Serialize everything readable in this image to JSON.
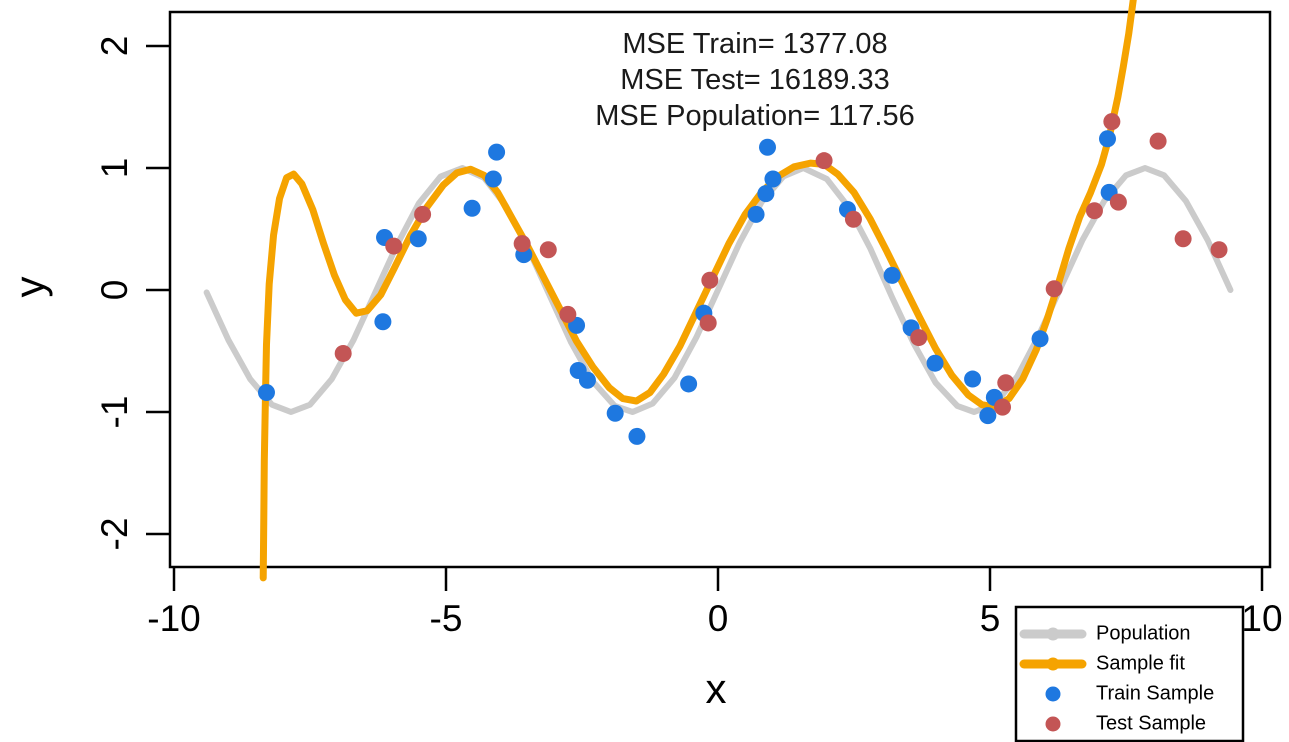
{
  "chart_data": {
    "type": "line+scatter",
    "title": "",
    "xlabel": "x",
    "ylabel": "y",
    "x_ticks": [
      -10,
      -5,
      0,
      5,
      10
    ],
    "y_ticks": [
      -2,
      -1,
      0,
      1,
      2
    ],
    "xlim": [
      -10.07,
      10.15
    ],
    "ylim": [
      -2.27,
      2.28
    ],
    "grid": false,
    "background": "#ffffff",
    "annotation_lines": [
      "MSE Train= 1377.08",
      "MSE Test= 16189.33",
      "MSE Population= 117.56"
    ],
    "legend": {
      "position": "bottom-right",
      "entries": [
        {
          "label": "Population",
          "marker": "thick-line-dot",
          "color": "#CBCBCB"
        },
        {
          "label": "Sample fit",
          "marker": "thick-line-dot",
          "color": "#F5A300"
        },
        {
          "label": "Train Sample",
          "marker": "dot",
          "color": "#1E78E0"
        },
        {
          "label": "Test Sample",
          "marker": "dot",
          "color": "#C35555"
        }
      ]
    },
    "series": [
      {
        "name": "Population",
        "type": "line",
        "color": "#CBCBCB",
        "stroke_width": 6,
        "points": [
          [
            -9.4,
            -0.02
          ],
          [
            -9.0,
            -0.41
          ],
          [
            -8.6,
            -0.73
          ],
          [
            -8.2,
            -0.94
          ],
          [
            -7.85,
            -1.0
          ],
          [
            -7.5,
            -0.94
          ],
          [
            -7.1,
            -0.73
          ],
          [
            -6.7,
            -0.41
          ],
          [
            -6.3,
            -0.02
          ],
          [
            -5.9,
            0.37
          ],
          [
            -5.5,
            0.71
          ],
          [
            -5.1,
            0.93
          ],
          [
            -4.7,
            1.0
          ],
          [
            -4.3,
            0.92
          ],
          [
            -3.9,
            0.69
          ],
          [
            -3.5,
            0.35
          ],
          [
            -3.1,
            -0.04
          ],
          [
            -2.7,
            -0.43
          ],
          [
            -2.3,
            -0.75
          ],
          [
            -1.9,
            -0.95
          ],
          [
            -1.57,
            -1.0
          ],
          [
            -1.2,
            -0.93
          ],
          [
            -0.8,
            -0.72
          ],
          [
            -0.4,
            -0.39
          ],
          [
            0.0,
            0.0
          ],
          [
            0.4,
            0.39
          ],
          [
            0.8,
            0.72
          ],
          [
            1.2,
            0.93
          ],
          [
            1.57,
            1.0
          ],
          [
            2.0,
            0.91
          ],
          [
            2.4,
            0.68
          ],
          [
            2.8,
            0.34
          ],
          [
            3.2,
            -0.06
          ],
          [
            3.6,
            -0.44
          ],
          [
            4.0,
            -0.76
          ],
          [
            4.4,
            -0.95
          ],
          [
            4.71,
            -1.0
          ],
          [
            5.1,
            -0.93
          ],
          [
            5.5,
            -0.71
          ],
          [
            5.9,
            -0.37
          ],
          [
            6.3,
            0.02
          ],
          [
            6.7,
            0.41
          ],
          [
            7.1,
            0.73
          ],
          [
            7.5,
            0.94
          ],
          [
            7.85,
            1.0
          ],
          [
            8.2,
            0.94
          ],
          [
            8.6,
            0.73
          ],
          [
            9.0,
            0.41
          ],
          [
            9.42,
            0.0
          ]
        ]
      },
      {
        "name": "Sample fit",
        "type": "line",
        "color": "#F5A300",
        "stroke_width": 7,
        "points": [
          [
            -8.36,
            -2.36
          ],
          [
            -8.35,
            -1.9
          ],
          [
            -8.34,
            -1.4
          ],
          [
            -8.32,
            -0.9
          ],
          [
            -8.3,
            -0.45
          ],
          [
            -8.25,
            0.05
          ],
          [
            -8.17,
            0.45
          ],
          [
            -8.06,
            0.75
          ],
          [
            -7.93,
            0.92
          ],
          [
            -7.8,
            0.95
          ],
          [
            -7.65,
            0.87
          ],
          [
            -7.45,
            0.66
          ],
          [
            -7.25,
            0.38
          ],
          [
            -7.05,
            0.12
          ],
          [
            -6.85,
            -0.08
          ],
          [
            -6.65,
            -0.19
          ],
          [
            -6.45,
            -0.17
          ],
          [
            -6.2,
            -0.04
          ],
          [
            -5.95,
            0.18
          ],
          [
            -5.65,
            0.45
          ],
          [
            -5.35,
            0.68
          ],
          [
            -5.05,
            0.86
          ],
          [
            -4.8,
            0.96
          ],
          [
            -4.55,
            0.99
          ],
          [
            -4.3,
            0.94
          ],
          [
            -4.05,
            0.8
          ],
          [
            -3.8,
            0.6
          ],
          [
            -3.5,
            0.36
          ],
          [
            -3.2,
            0.1
          ],
          [
            -2.9,
            -0.16
          ],
          [
            -2.6,
            -0.42
          ],
          [
            -2.3,
            -0.63
          ],
          [
            -2.0,
            -0.8
          ],
          [
            -1.75,
            -0.89
          ],
          [
            -1.5,
            -0.91
          ],
          [
            -1.25,
            -0.84
          ],
          [
            -1.0,
            -0.69
          ],
          [
            -0.7,
            -0.46
          ],
          [
            -0.4,
            -0.18
          ],
          [
            -0.1,
            0.1
          ],
          [
            0.2,
            0.38
          ],
          [
            0.5,
            0.62
          ],
          [
            0.8,
            0.8
          ],
          [
            1.1,
            0.93
          ],
          [
            1.4,
            1.01
          ],
          [
            1.7,
            1.04
          ],
          [
            1.95,
            1.03
          ],
          [
            2.2,
            0.95
          ],
          [
            2.5,
            0.8
          ],
          [
            2.8,
            0.58
          ],
          [
            3.1,
            0.32
          ],
          [
            3.4,
            0.05
          ],
          [
            3.7,
            -0.22
          ],
          [
            4.0,
            -0.48
          ],
          [
            4.3,
            -0.7
          ],
          [
            4.6,
            -0.86
          ],
          [
            4.85,
            -0.94
          ],
          [
            5.1,
            -0.96
          ],
          [
            5.35,
            -0.89
          ],
          [
            5.6,
            -0.73
          ],
          [
            5.85,
            -0.49
          ],
          [
            6.05,
            -0.24
          ],
          [
            6.25,
            0.04
          ],
          [
            6.45,
            0.34
          ],
          [
            6.65,
            0.6
          ],
          [
            6.85,
            0.8
          ],
          [
            7.05,
            1.03
          ],
          [
            7.2,
            1.27
          ],
          [
            7.35,
            1.58
          ],
          [
            7.45,
            1.83
          ],
          [
            7.55,
            2.1
          ],
          [
            7.64,
            2.4
          ]
        ]
      },
      {
        "name": "Train Sample",
        "type": "scatter",
        "color": "#1E78E0",
        "radius": 8.5,
        "points": [
          [
            -8.3,
            -0.84
          ],
          [
            -6.16,
            -0.26
          ],
          [
            -6.13,
            0.43
          ],
          [
            -5.51,
            0.42
          ],
          [
            -4.52,
            0.67
          ],
          [
            -4.13,
            0.91
          ],
          [
            -4.07,
            1.13
          ],
          [
            -3.57,
            0.29
          ],
          [
            -2.6,
            -0.29
          ],
          [
            -2.57,
            -0.66
          ],
          [
            -2.4,
            -0.74
          ],
          [
            -1.89,
            -1.01
          ],
          [
            -1.49,
            -1.2
          ],
          [
            -0.54,
            -0.77
          ],
          [
            -0.26,
            -0.19
          ],
          [
            0.7,
            0.62
          ],
          [
            0.88,
            0.79
          ],
          [
            0.91,
            1.17
          ],
          [
            1.01,
            0.91
          ],
          [
            2.38,
            0.66
          ],
          [
            3.2,
            0.12
          ],
          [
            3.55,
            -0.31
          ],
          [
            3.99,
            -0.6
          ],
          [
            4.68,
            -0.73
          ],
          [
            4.96,
            -1.03
          ],
          [
            5.08,
            -0.88
          ],
          [
            5.92,
            -0.4
          ],
          [
            7.16,
            1.24
          ],
          [
            7.19,
            0.8
          ]
        ]
      },
      {
        "name": "Test Sample",
        "type": "scatter",
        "color": "#C35555",
        "radius": 8.5,
        "points": [
          [
            -6.89,
            -0.52
          ],
          [
            -5.96,
            0.36
          ],
          [
            -5.43,
            0.62
          ],
          [
            -3.6,
            0.38
          ],
          [
            -3.12,
            0.33
          ],
          [
            -2.76,
            -0.2
          ],
          [
            -0.18,
            -0.27
          ],
          [
            -0.15,
            0.08
          ],
          [
            1.95,
            1.06
          ],
          [
            2.49,
            0.58
          ],
          [
            3.69,
            -0.39
          ],
          [
            5.23,
            -0.96
          ],
          [
            5.29,
            -0.76
          ],
          [
            6.18,
            0.01
          ],
          [
            6.92,
            0.65
          ],
          [
            7.24,
            1.38
          ],
          [
            7.36,
            0.72
          ],
          [
            8.09,
            1.22
          ],
          [
            8.55,
            0.42
          ],
          [
            9.21,
            0.33
          ]
        ]
      }
    ]
  }
}
